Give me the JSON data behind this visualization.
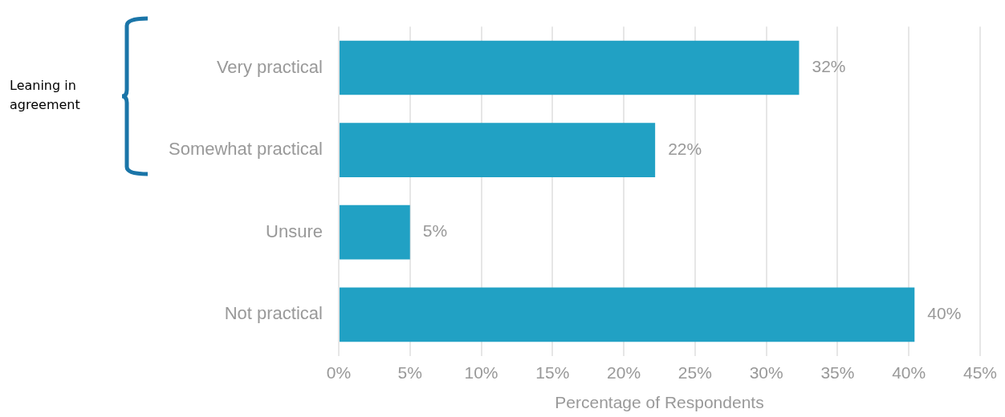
{
  "chart_data": {
    "type": "bar",
    "orientation": "horizontal",
    "xlabel": "Percentage of Respondents",
    "categories": [
      "Very practical",
      "Somewhat practical",
      "Unsure",
      "Not practical"
    ],
    "values": [
      32.3,
      22.2,
      5.0,
      40.4
    ],
    "value_labels": [
      "32%",
      "22%",
      "5%",
      "40%"
    ],
    "color": "#21a1c4",
    "xlim": [
      0,
      45
    ],
    "xticks": [
      {
        "value": 0,
        "label": "0%"
      },
      {
        "value": 5,
        "label": "5%"
      },
      {
        "value": 10,
        "label": "10%"
      },
      {
        "value": 15,
        "label": "15%"
      },
      {
        "value": 20,
        "label": "20%"
      },
      {
        "value": 25,
        "label": "25%"
      },
      {
        "value": 30,
        "label": "30%"
      },
      {
        "value": 35,
        "label": "35%"
      },
      {
        "value": 40,
        "label": "40%"
      },
      {
        "value": 45,
        "label": "45%"
      }
    ],
    "grid": "x",
    "legend": false,
    "annotations": [
      "Leaning in agreement"
    ]
  }
}
